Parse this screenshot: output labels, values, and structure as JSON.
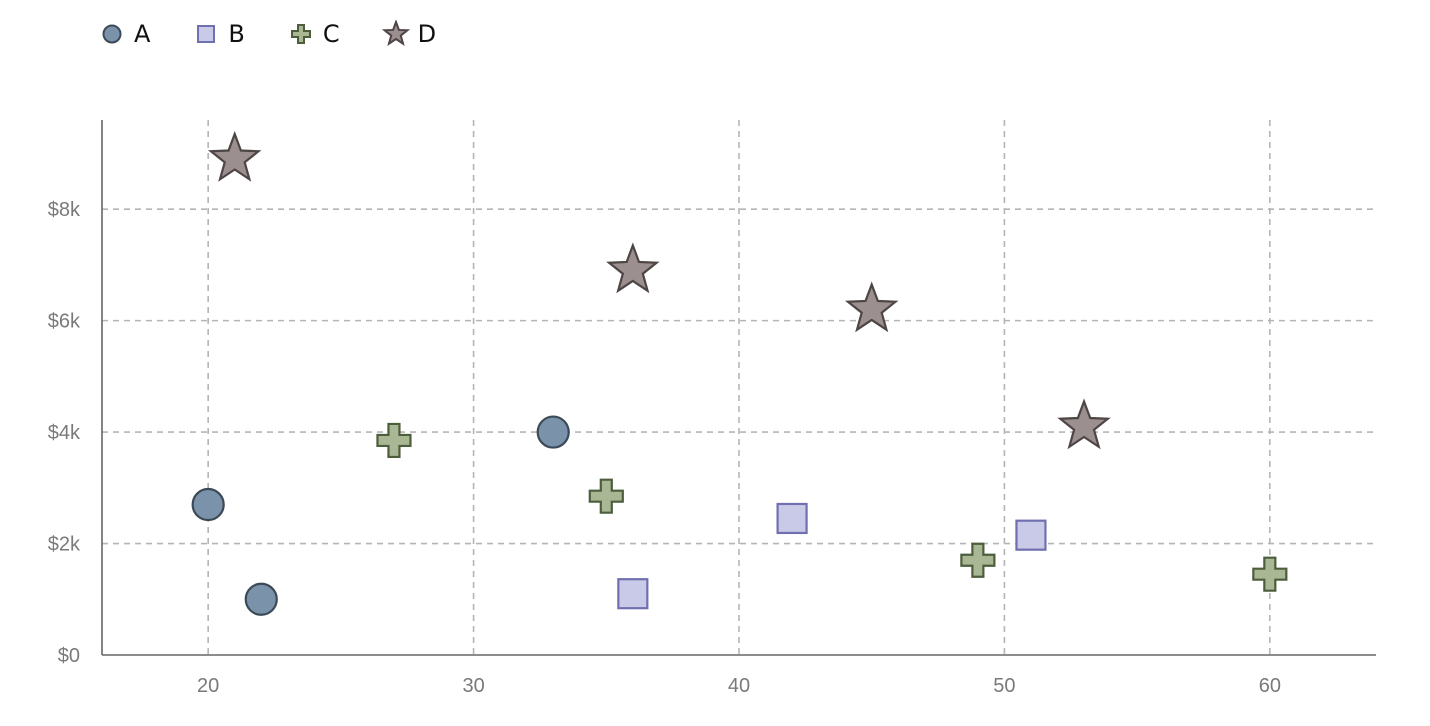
{
  "chart_data": {
    "type": "scatter",
    "xlim": [
      16,
      64
    ],
    "ylim": [
      0,
      9600
    ],
    "x_ticks": [
      20,
      30,
      40,
      50,
      60
    ],
    "y_ticks": [
      0,
      2000,
      4000,
      6000,
      8000
    ],
    "x_tick_labels": [
      "20",
      "30",
      "40",
      "50",
      "60"
    ],
    "y_tick_labels": [
      "$0",
      "$2k",
      "$4k",
      "$6k",
      "$8k"
    ],
    "grid": true,
    "legend_position": "top-left",
    "series": [
      {
        "name": "A",
        "marker": "circle",
        "fill": "#7b93aa",
        "stroke": "#3c4a58",
        "points": [
          [
            20,
            2700
          ],
          [
            22,
            1000
          ],
          [
            33,
            4000
          ]
        ]
      },
      {
        "name": "B",
        "marker": "square",
        "fill": "#c9c9e8",
        "stroke": "#7070b0",
        "points": [
          [
            36,
            1100
          ],
          [
            42,
            2450
          ],
          [
            51,
            2150
          ]
        ]
      },
      {
        "name": "C",
        "marker": "cross",
        "fill": "#a9b794",
        "stroke": "#4d5e3c",
        "points": [
          [
            27,
            3850
          ],
          [
            35,
            2850
          ],
          [
            49,
            1700
          ],
          [
            60,
            1450
          ]
        ]
      },
      {
        "name": "D",
        "marker": "star",
        "fill": "#9b8f8f",
        "stroke": "#4e4545",
        "points": [
          [
            21,
            8900
          ],
          [
            36,
            6900
          ],
          [
            45,
            6200
          ],
          [
            53,
            4100
          ]
        ]
      }
    ]
  }
}
